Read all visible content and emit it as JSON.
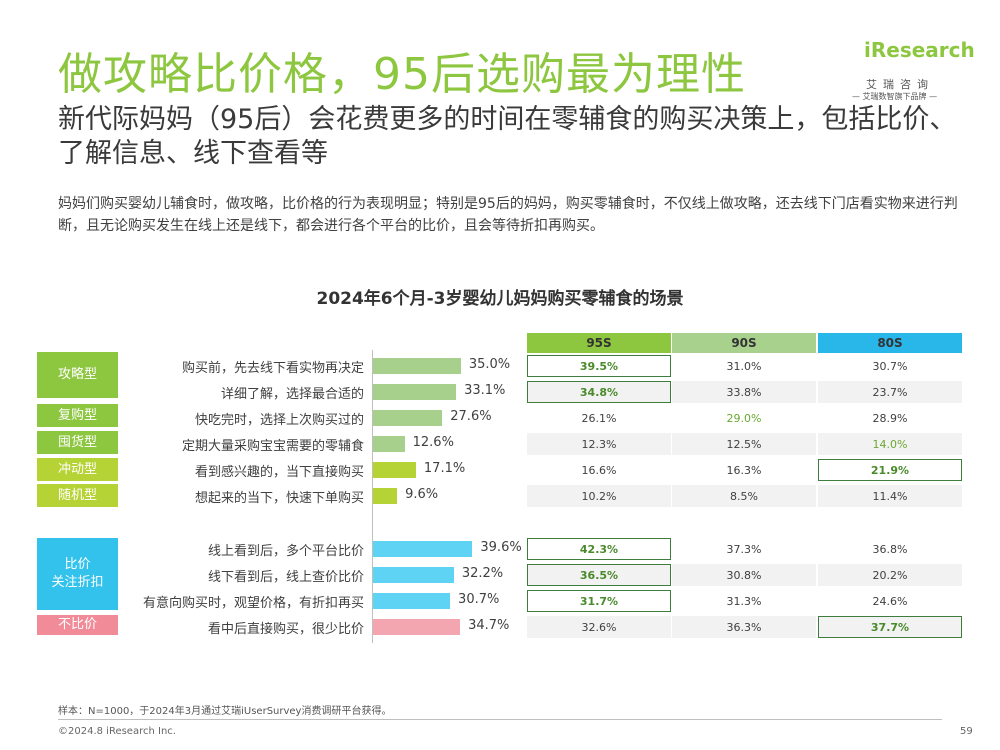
{
  "header": {
    "title": "做攻略比价格，95后选购最为理性",
    "subtitle": "新代际妈妈（95后）会花费更多的时间在零辅食的购买决策上，包括比价、了解信息、线下查看等",
    "description": "妈妈们购买婴幼儿辅食时，做攻略，比价格的行为表现明显；特别是95后的妈妈，购买零辅食时，不仅线上做攻略，还去线下门店看实物来进行判断，且无论购买发生在线上还是线下，都会进行各个平台的比价，且会等待折扣再购买。"
  },
  "logo": {
    "brand": "iResearch",
    "cn": "艾瑞咨询",
    "tagline": "— 艾瑞数智旗下品牌 —"
  },
  "colors": {
    "accent": "#8dc63f",
    "bar_green": "#a8d08d",
    "bar_lime": "#b5d334",
    "bar_blue": "#5fd3f3",
    "bar_pink": "#f4a6b0",
    "head_95": "#8dc63f",
    "head_90": "#a9d18e",
    "head_80": "#29b6e8"
  },
  "chart_data": {
    "type": "bar",
    "title": "2024年6个月-3岁婴幼儿妈妈购买零辅食的场景",
    "groups": [
      {
        "label": "攻略型",
        "color": "#8dc63f"
      },
      {
        "label": "复购型",
        "color": "#8dc63f"
      },
      {
        "label": "囤货型",
        "color": "#8dc63f"
      },
      {
        "label": "冲动型",
        "color": "#b5d334"
      },
      {
        "label": "随机型",
        "color": "#b5d334"
      },
      {
        "label": "比价\n关注折扣",
        "color": "#33c2ec"
      },
      {
        "label": "不比价",
        "color": "#f18b98"
      }
    ],
    "categories": [
      "购买前，先去线下看实物再决定",
      "详细了解，选择最合适的",
      "快吃完时，选择上次购买过的",
      "定期大量采购宝宝需要的零辅食",
      "看到感兴趣的，当下直接购买",
      "想起来的当下，快速下单购买",
      "线上看到后，多个平台比价",
      "线下看到后，线上查价比价",
      "有意向购买时，观望价格，有折扣再买",
      "看中后直接购买，很少比价"
    ],
    "values": [
      35.0,
      33.1,
      27.6,
      12.6,
      17.1,
      9.6,
      39.6,
      32.2,
      30.7,
      34.7
    ],
    "value_labels": [
      "35.0%",
      "33.1%",
      "27.6%",
      "12.6%",
      "17.1%",
      "9.6%",
      "39.6%",
      "32.2%",
      "30.7%",
      "34.7%"
    ],
    "bar_colors": [
      "#a8d08d",
      "#a8d08d",
      "#a8d08d",
      "#a8d08d",
      "#b5d334",
      "#b5d334",
      "#5fd3f3",
      "#5fd3f3",
      "#5fd3f3",
      "#f4a6b0"
    ],
    "series": [
      {
        "name": "95S",
        "values": [
          "39.5%",
          "34.8%",
          "26.1%",
          "12.3%",
          "16.6%",
          "10.2%",
          "42.3%",
          "36.5%",
          "31.7%",
          "32.6%"
        ]
      },
      {
        "name": "90S",
        "values": [
          "31.0%",
          "33.8%",
          "29.0%",
          "12.5%",
          "16.3%",
          "8.5%",
          "37.3%",
          "30.8%",
          "31.3%",
          "36.3%"
        ]
      },
      {
        "name": "80S",
        "values": [
          "30.7%",
          "23.7%",
          "28.9%",
          "14.0%",
          "21.9%",
          "11.4%",
          "36.8%",
          "20.2%",
          "24.6%",
          "37.7%"
        ]
      }
    ]
  },
  "footer": {
    "note": "样本：N=1000，于2024年3月通过艾瑞iUserSurvey消费调研平台获得。",
    "copyright": "©2024.8 iResearch Inc.",
    "page": "59"
  }
}
